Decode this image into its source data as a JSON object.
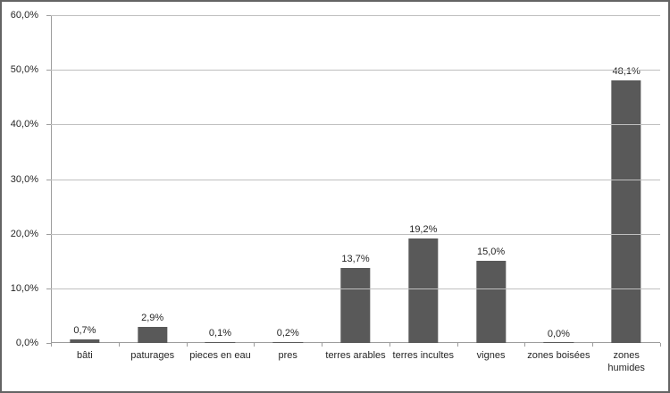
{
  "chart_data": {
    "type": "bar",
    "title": "",
    "categories": [
      "bâti",
      "paturages",
      "pieces en eau",
      "pres",
      "terres arables",
      "terres incultes",
      "vignes",
      "zones boisées",
      "zones\nhumides"
    ],
    "values": [
      0.7,
      2.9,
      0.1,
      0.2,
      13.7,
      19.2,
      15.0,
      0.0,
      48.1
    ],
    "value_labels": [
      "0,7%",
      "2,9%",
      "0,1%",
      "0,2%",
      "13,7%",
      "19,2%",
      "15,0%",
      "0,0%",
      "48,1%"
    ],
    "xlabel": "",
    "ylabel": "",
    "ylim": [
      0,
      60
    ],
    "yticks": [
      0,
      10,
      20,
      30,
      40,
      50,
      60
    ],
    "ytick_labels": [
      "0,0%",
      "10,0%",
      "20,0%",
      "30,0%",
      "40,0%",
      "50,0%",
      "60,0%"
    ],
    "grid": true,
    "legend": false,
    "colors": {
      "bar": "#595959",
      "gridline": "#bfbfbf",
      "axis": "#9d9d9d",
      "text": "#262626",
      "frame_border": "#646464",
      "background": "#ffffff"
    }
  }
}
